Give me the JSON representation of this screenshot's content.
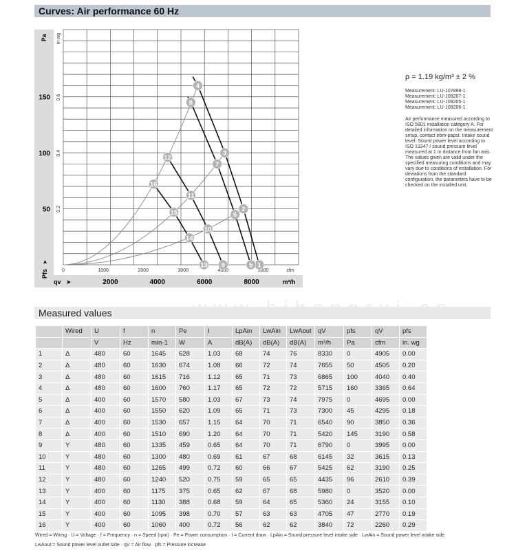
{
  "header": {
    "title": "Curves: Air performance 60 Hz"
  },
  "watermark": "www.bjhengrui.cn",
  "side_info": {
    "density": "ρ = 1.19 kg/m³ ± 2 %",
    "measurements": [
      "Measurement: LU-107898-1",
      "Measurement: LU-108207-1",
      "Measurement: LU-108205-1",
      "Measurement: LU-108206-1"
    ],
    "note": "Air performance measured according to ISO 5801 installation category A. For detailed information on the measurement setup, contact ebm-papst. Intake sound level: Sound power level according to ISO 13347 / sound pressure level measured at 1 m distance from fan axis. The values given are valid under the specified measuring conditions and may vary due to conditions of installation. For deviations from the standard configuration, the parameters have to be checked on the installed unit."
  },
  "chart_data": {
    "type": "line",
    "title": "Curves: Air performance 60 Hz",
    "xlabel": "qv",
    "xunit": "m³/h",
    "xunit2": "cfm",
    "ylabel": "Pfs",
    "yunit": "Pa",
    "yunit2": "in wg",
    "xlim": [
      0,
      10000
    ],
    "ylim": [
      0,
      210
    ],
    "x_ticks": [
      2000,
      4000,
      6000,
      8000
    ],
    "x2_ticks": [
      0,
      1000,
      2000,
      3000,
      4000,
      5000
    ],
    "y_ticks": [
      50,
      100,
      150
    ],
    "y2_ticks": [
      "0.2",
      "0.4",
      "0.6"
    ],
    "grid": true,
    "line_color": "#111111",
    "system_curve_color": "#888888",
    "marker_color": "#b3b3b3",
    "points": [
      {
        "id": "1",
        "q": 8330,
        "p": 0
      },
      {
        "id": "2",
        "q": 7655,
        "p": 50
      },
      {
        "id": "3",
        "q": 6865,
        "p": 100
      },
      {
        "id": "4",
        "q": 5715,
        "p": 160
      },
      {
        "id": "5",
        "q": 7975,
        "p": 0
      },
      {
        "id": "6",
        "q": 7300,
        "p": 45
      },
      {
        "id": "7",
        "q": 6540,
        "p": 90
      },
      {
        "id": "8",
        "q": 5420,
        "p": 145
      },
      {
        "id": "9",
        "q": 6790,
        "p": 0
      },
      {
        "id": "10",
        "q": 6145,
        "p": 32
      },
      {
        "id": "11",
        "q": 5425,
        "p": 62
      },
      {
        "id": "12",
        "q": 4435,
        "p": 96
      },
      {
        "id": "13",
        "q": 5980,
        "p": 0
      },
      {
        "id": "14",
        "q": 5360,
        "p": 24
      },
      {
        "id": "15",
        "q": 4705,
        "p": 47
      },
      {
        "id": "16",
        "q": 3840,
        "p": 72
      }
    ],
    "fan_curves": [
      {
        "points": [
          "1",
          "2",
          "3",
          "4"
        ],
        "extends_to": [
          5500,
          168
        ]
      },
      {
        "points": [
          "5",
          "6",
          "7",
          "8"
        ],
        "extends_to": [
          5290,
          150
        ]
      },
      {
        "points": [
          "9",
          "10",
          "11",
          "12"
        ]
      },
      {
        "points": [
          "13",
          "14",
          "15",
          "16"
        ]
      }
    ],
    "system_curves": [
      {
        "through": "4"
      },
      {
        "through": "3"
      },
      {
        "through": "2"
      }
    ]
  },
  "measured": {
    "title": "Measured values",
    "header1": [
      "",
      "Wired",
      "U",
      "f",
      "n",
      "Pe",
      "I",
      "LpAin",
      "LwAin",
      "LwAout",
      "qV",
      "pfs",
      "qV",
      "pfs"
    ],
    "header2": [
      "",
      "",
      "V",
      "Hz",
      "min-1",
      "W",
      "A",
      "dB(A)",
      "dB(A)",
      "dB(A)",
      "m³/h",
      "Pa",
      "cfm",
      "in. wg"
    ],
    "rows": [
      [
        "1",
        "Δ",
        "480",
        "60",
        "1645",
        "628",
        "1.03",
        "68",
        "74",
        "76",
        "8330",
        "0",
        "4905",
        "0.00"
      ],
      [
        "2",
        "Δ",
        "480",
        "60",
        "1630",
        "674",
        "1.08",
        "66",
        "72",
        "74",
        "7655",
        "50",
        "4505",
        "0.20"
      ],
      [
        "3",
        "Δ",
        "480",
        "60",
        "1615",
        "716",
        "1.12",
        "65",
        "71",
        "73",
        "6865",
        "100",
        "4040",
        "0.40"
      ],
      [
        "4",
        "Δ",
        "480",
        "60",
        "1600",
        "760",
        "1.17",
        "65",
        "72",
        "72",
        "5715",
        "160",
        "3365",
        "0.64"
      ],
      [
        "5",
        "Δ",
        "400",
        "60",
        "1570",
        "580",
        "1.03",
        "67",
        "73",
        "74",
        "7975",
        "0",
        "4695",
        "0.00"
      ],
      [
        "6",
        "Δ",
        "400",
        "60",
        "1550",
        "620",
        "1.09",
        "65",
        "71",
        "73",
        "7300",
        "45",
        "4295",
        "0.18"
      ],
      [
        "7",
        "Δ",
        "400",
        "60",
        "1530",
        "657",
        "1.15",
        "64",
        "70",
        "71",
        "6540",
        "90",
        "3850",
        "0.36"
      ],
      [
        "8",
        "Δ",
        "400",
        "60",
        "1510",
        "690",
        "1.20",
        "64",
        "70",
        "71",
        "5420",
        "145",
        "3190",
        "0.58"
      ],
      [
        "9",
        "Y",
        "480",
        "60",
        "1335",
        "459",
        "0.65",
        "64",
        "70",
        "71",
        "6790",
        "0",
        "3995",
        "0.00"
      ],
      [
        "10",
        "Y",
        "480",
        "60",
        "1300",
        "480",
        "0.69",
        "61",
        "67",
        "68",
        "6145",
        "32",
        "3615",
        "0.13"
      ],
      [
        "11",
        "Y",
        "480",
        "60",
        "1265",
        "499",
        "0.72",
        "60",
        "66",
        "67",
        "5425",
        "62",
        "3190",
        "0.25"
      ],
      [
        "12",
        "Y",
        "480",
        "60",
        "1240",
        "520",
        "0.75",
        "59",
        "65",
        "65",
        "4435",
        "96",
        "2610",
        "0.39"
      ],
      [
        "13",
        "Y",
        "400",
        "60",
        "1175",
        "375",
        "0.65",
        "62",
        "67",
        "68",
        "5980",
        "0",
        "3520",
        "0.00"
      ],
      [
        "14",
        "Y",
        "400",
        "60",
        "1130",
        "388",
        "0.68",
        "59",
        "64",
        "65",
        "5360",
        "24",
        "3155",
        "0.10"
      ],
      [
        "15",
        "Y",
        "400",
        "60",
        "1095",
        "398",
        "0.70",
        "57",
        "63",
        "63",
        "4705",
        "47",
        "2770",
        "0.19"
      ],
      [
        "16",
        "Y",
        "400",
        "60",
        "1060",
        "400",
        "0.72",
        "56",
        "62",
        "62",
        "3840",
        "72",
        "2260",
        "0.29"
      ]
    ],
    "footnote1": "Wired = Wiring · U = Voltage · f = Frequency · n = Speed (rpm) · Pe = Power consumption · I = Current draw · LpAin = Sound pressure level intake side · LwAin = Sound power level intake side",
    "footnote2": "LwAout = Sound power level outlet side · qV = Air flow · pfs = Pressure increase"
  }
}
